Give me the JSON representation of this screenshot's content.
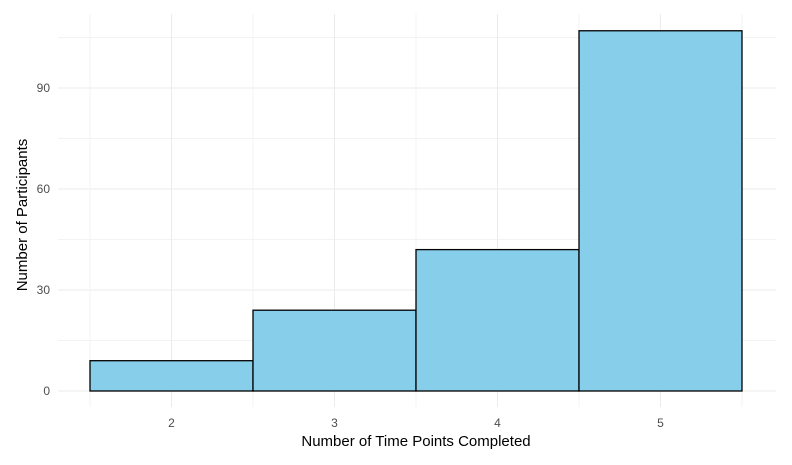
{
  "chart_data": {
    "type": "bar",
    "categories": [
      "2",
      "3",
      "4",
      "5"
    ],
    "values": [
      9,
      24,
      42,
      107
    ],
    "title": "",
    "xlabel": "Number of Time Points Completed",
    "ylabel": "Number of Participants",
    "ylim": [
      0,
      112
    ],
    "yticks": [
      "0",
      "30",
      "60",
      "90"
    ],
    "grid": true,
    "legend": "none",
    "colors": {
      "bar_fill": "#87CEEB",
      "bar_stroke": "#000000",
      "grid": "#ebebeb",
      "tick_text": "#4d4d4d",
      "axis_title": "#000000"
    }
  }
}
